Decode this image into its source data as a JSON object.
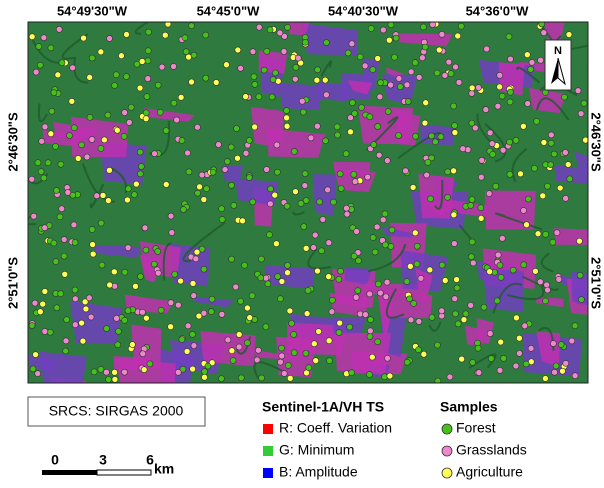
{
  "map": {
    "graticule": {
      "longitude": [
        "54°49'30\"W",
        "54°45'0\"W",
        "54°40'30\"W",
        "54°36'0\"W"
      ],
      "latitude": [
        "2°46'30\"S",
        "2°51'0\"S"
      ]
    },
    "north_arrow": "N",
    "crs": "SRCS: SIRGAS 2000",
    "scale_bar": {
      "ticks": [
        0,
        3,
        6
      ],
      "unit": "km"
    },
    "legend": {
      "composite": {
        "title": "Sentinel-1A/VH TS",
        "items": [
          {
            "label": "R: Coeff. Variation",
            "color": "#ff0000"
          },
          {
            "label": "G: Minimum",
            "color": "#33cc33"
          },
          {
            "label": "B: Amplitude",
            "color": "#0000ff"
          }
        ]
      },
      "samples": {
        "title": "Samples",
        "items": [
          {
            "label": "Forest",
            "color": "#44c21a"
          },
          {
            "label": "Grasslands",
            "color": "#ee88cc"
          },
          {
            "label": "Agriculture",
            "color": "#ffff55"
          }
        ]
      }
    }
  }
}
